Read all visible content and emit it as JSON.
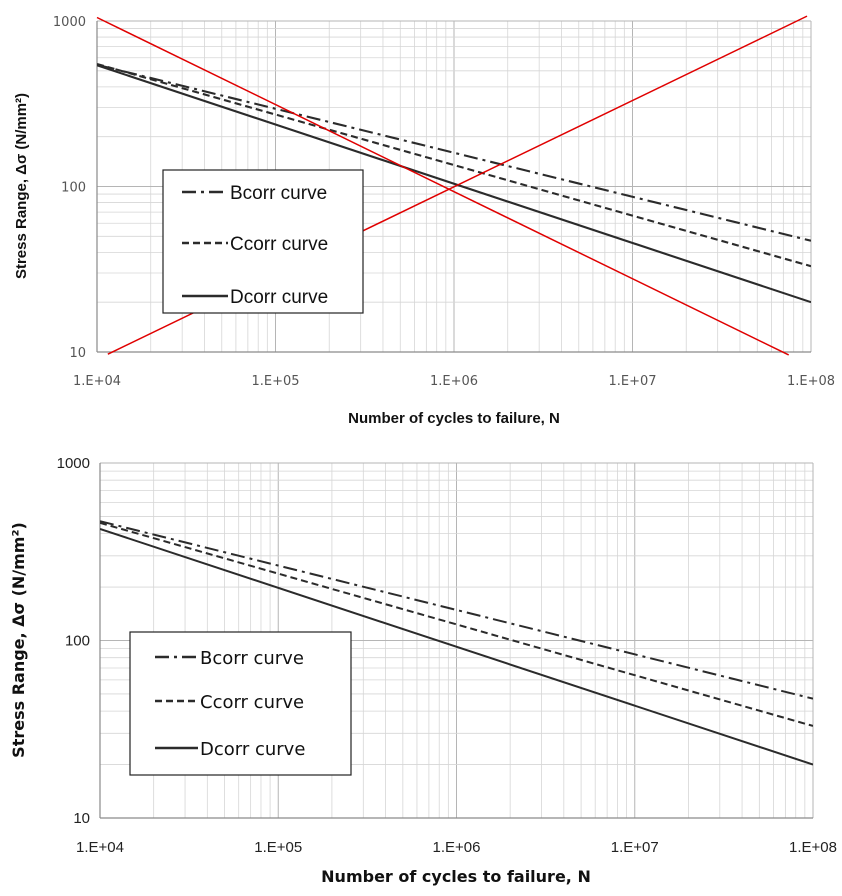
{
  "chart_data": [
    {
      "type": "line",
      "xscale": "log",
      "yscale": "log",
      "xlim": [
        10000,
        100000000
      ],
      "ylim": [
        10,
        1000
      ],
      "x_ticks": [
        "1.E+04",
        "1.E+05",
        "1.E+06",
        "1.E+07",
        "1.E+08"
      ],
      "y_ticks": [
        "10",
        "100",
        "1000"
      ],
      "xlabel": "Number of cycles to failure, N",
      "ylabel": "Stress Range, Δσ (N/mm²)",
      "grid": true,
      "legend_position": "center-left",
      "series": [
        {
          "name": "Bcorr curve",
          "style": "dash-dot",
          "x": [
            10000,
            100000000
          ],
          "y": [
            544,
            47
          ]
        },
        {
          "name": "Ccorr curve",
          "style": "dashed",
          "x": [
            10000,
            100000000
          ],
          "y": [
            550,
            33
          ]
        },
        {
          "name": "Dcorr curve",
          "style": "solid",
          "x": [
            10000,
            100000000
          ],
          "y": [
            540,
            20
          ]
        }
      ],
      "annotations": [
        {
          "shape": "cross-out line",
          "color": "#e00000",
          "x": [
            10000,
            75000000
          ],
          "y": [
            1050,
            9.6
          ]
        },
        {
          "shape": "cross-out line",
          "color": "#e00000",
          "x": [
            11500,
            95000000
          ],
          "y": [
            9.7,
            1070
          ]
        }
      ]
    },
    {
      "type": "line",
      "xscale": "log",
      "yscale": "log",
      "xlim": [
        10000,
        100000000
      ],
      "ylim": [
        10,
        1000
      ],
      "x_ticks": [
        "1.E+04",
        "1.E+05",
        "1.E+06",
        "1.E+07",
        "1.E+08"
      ],
      "y_ticks": [
        "10",
        "100",
        "1000"
      ],
      "xlabel": "Number of cycles to failure, N",
      "ylabel": "Stress Range, Δσ (N/mm²)",
      "grid": true,
      "legend_position": "center-left",
      "series": [
        {
          "name": "Bcorr curve",
          "style": "dash-dot",
          "x": [
            10000,
            100000000
          ],
          "y": [
            470,
            47
          ]
        },
        {
          "name": "Ccorr curve",
          "style": "dashed",
          "x": [
            10000,
            100000000
          ],
          "y": [
            460,
            33
          ]
        },
        {
          "name": "Dcorr curve",
          "style": "solid",
          "x": [
            10000,
            100000000
          ],
          "y": [
            425,
            20
          ]
        }
      ]
    }
  ]
}
